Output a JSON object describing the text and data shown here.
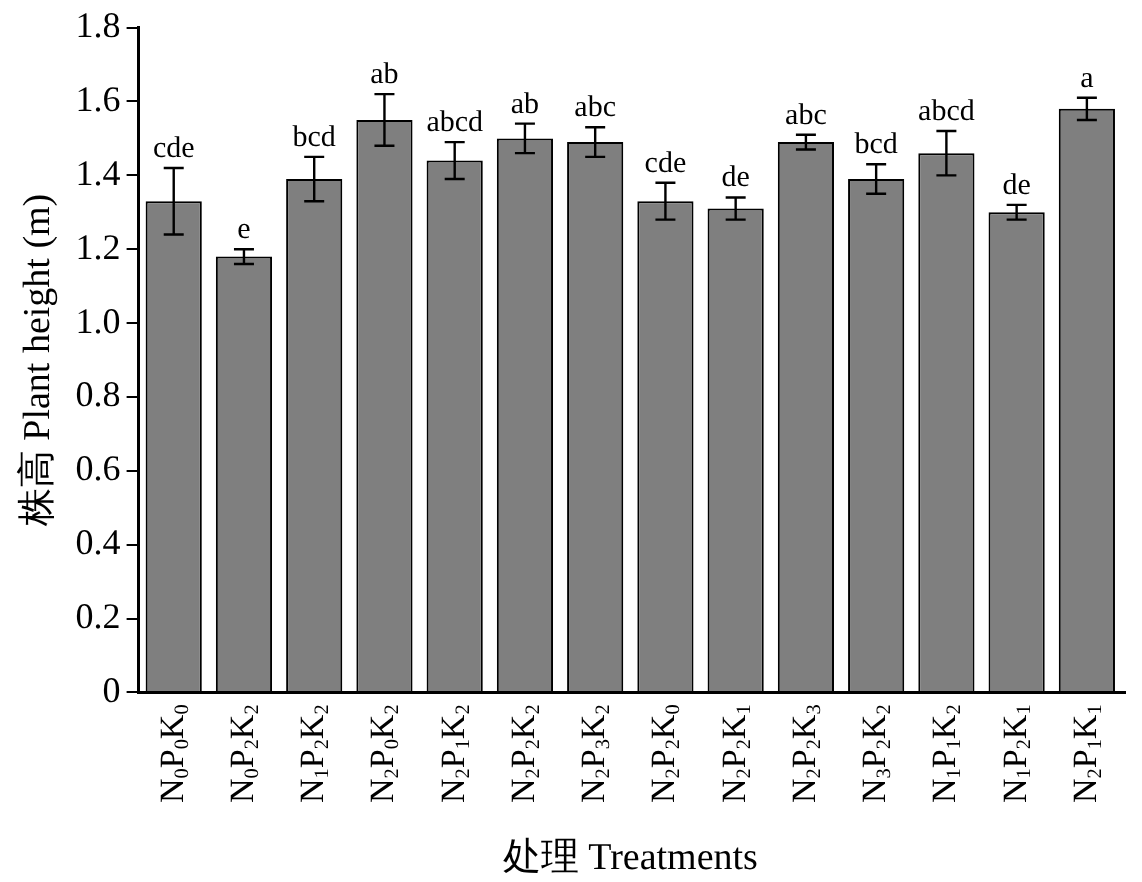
{
  "chart_data": {
    "type": "bar",
    "xlabel": "处理 Treatments",
    "ylabel": "株高 Plant height (m)",
    "categories": [
      "N$_{0}$P$_{0}$K$_{0}$",
      "N$_{0}$P$_{2}$K$_{2}$",
      "N$_{1}$P$_{2}$K$_{2}$",
      "N$_{2}$P$_{0}$K$_{2}$",
      "N$_{2}$P$_{1}$K$_{2}$",
      "N$_{2}$P$_{2}$K$_{2}$",
      "N$_{2}$P$_{3}$K$_{2}$",
      "N$_{2}$P$_{2}$K$_{0}$",
      "N$_{2}$P$_{2}$K$_{1}$",
      "N$_{2}$P$_{2}$K$_{3}$",
      "N$_{3}$P$_{2}$K$_{2}$",
      "N$_{1}$P$_{1}$K$_{2}$",
      "N$_{1}$P$_{2}$K$_{1}$",
      "N$_{2}$P$_{1}$K$_{1}$"
    ],
    "values": [
      1.33,
      1.18,
      1.39,
      1.55,
      1.44,
      1.5,
      1.49,
      1.33,
      1.31,
      1.49,
      1.39,
      1.46,
      1.3,
      1.58
    ],
    "errors": [
      0.09,
      0.02,
      0.06,
      0.07,
      0.05,
      0.04,
      0.04,
      0.05,
      0.03,
      0.02,
      0.04,
      0.06,
      0.02,
      0.03
    ],
    "color": "#7f7f7f",
    "ylim": [
      0,
      1.8
    ],
    "yticks": [
      0,
      0.2,
      0.4,
      0.6,
      0.8,
      {
        "value": 1,
        "label": "1.0"
      },
      1.2,
      1.4,
      1.6,
      1.8
    ],
    "grid": false,
    "legend": false,
    "annotations": [
      {
        "text": "cde",
        "x": "N$_{0}$P$_{0}$K$_{0}$",
        "y": 1.42
      },
      {
        "text": "e",
        "x": "N$_{0}$P$_{2}$K$_{2}$",
        "y": 1.2
      },
      {
        "text": "bcd",
        "x": "N$_{1}$P$_{2}$K$_{2}$",
        "y": 1.45
      },
      {
        "text": "ab",
        "x": "N$_{2}$P$_{0}$K$_{2}$",
        "y": 1.62
      },
      {
        "text": "abcd",
        "x": "N$_{2}$P$_{1}$K$_{2}$",
        "y": 1.49
      },
      {
        "text": "ab",
        "x": "N$_{2}$P$_{2}$K$_{2}$",
        "y": 1.54
      },
      {
        "text": "abc",
        "x": "N$_{2}$P$_{3}$K$_{2}$",
        "y": 1.53
      },
      {
        "text": "cde",
        "x": "N$_{2}$P$_{2}$K$_{0}$",
        "y": 1.38
      },
      {
        "text": "de",
        "x": "N$_{2}$P$_{2}$K$_{1}$",
        "y": 1.34
      },
      {
        "text": "abc",
        "x": "N$_{2}$P$_{2}$K$_{3}$",
        "y": 1.51
      },
      {
        "text": "bcd",
        "x": "N$_{3}$P$_{2}$K$_{2}$",
        "y": 1.43
      },
      {
        "text": "abcd",
        "x": "N$_{1}$P$_{1}$K$_{2}$",
        "y": 1.52
      },
      {
        "text": "de",
        "x": "N$_{1}$P$_{2}$K$_{1}$",
        "y": 1.32
      },
      {
        "text": "a",
        "x": "N$_{2}$P$_{1}$K$_{1}$",
        "y": 1.61
      }
    ]
  }
}
